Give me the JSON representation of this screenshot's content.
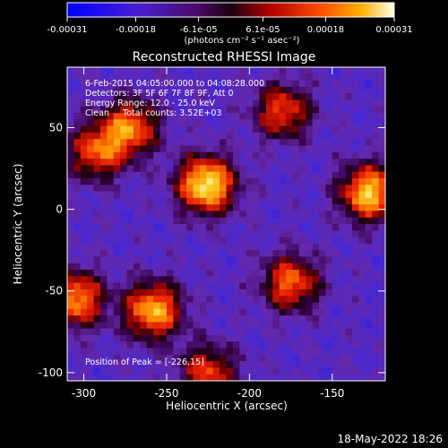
{
  "colorbar": {
    "tick_labels": [
      "-0.00031",
      "-0.00018",
      "-6.1e-05",
      "6.1e-05",
      "0.00018",
      "0.00031"
    ],
    "tick_values": [
      -0.00031,
      -0.00018,
      -6.1e-05,
      6.1e-05,
      0.00018,
      0.00031
    ],
    "range": [
      -0.00031,
      0.00031
    ],
    "units_label": "(photons cm⁻² s⁻¹ asec⁻²)"
  },
  "chart_data": {
    "type": "heatmap",
    "title": "Reconstructed RHESSI Image",
    "xlabel": "Heliocentric X (arcsec)",
    "ylabel": "Heliocentric Y (arcsec)",
    "xlim": [
      -310,
      -118
    ],
    "ylim": [
      -105,
      87
    ],
    "x_ticks": [
      -300,
      -250,
      -200,
      -150
    ],
    "y_ticks": [
      -100,
      -50,
      0,
      50
    ],
    "x_tick_labels": [
      "-300",
      "-250",
      "-200",
      "-150"
    ],
    "y_tick_labels": [
      "-100",
      "-50",
      "0",
      "50"
    ],
    "grid": false,
    "colormap_stops": [
      "#0000ff",
      "#6a2fb5",
      "#2a0035",
      "#8b0000",
      "#ff2a00",
      "#ff9900",
      "#ffffaa"
    ],
    "annotations": [
      "6-Feb-2015 04:05:00.000 to 04:08:28.000",
      "Detectors: 3F 5F 6F 7F 8F 9F, Att 0",
      "Energy Range: 12.0 - 25.0 keV",
      "Clean     Total counts: 3.52E+03"
    ],
    "peak_label": "Position of Peak = [-226,15]",
    "peak": [
      -226,
      15
    ],
    "sources": [
      {
        "x": -226,
        "y": 15,
        "peak": 0.00031
      },
      {
        "x": -272,
        "y": 50,
        "peak": 0.00018
      },
      {
        "x": -292,
        "y": 35,
        "peak": 0.00015
      },
      {
        "x": -128,
        "y": 10,
        "peak": 0.00026
      },
      {
        "x": -305,
        "y": -55,
        "peak": 0.00021
      },
      {
        "x": -258,
        "y": -62,
        "peak": 0.00024
      },
      {
        "x": -175,
        "y": -45,
        "peak": 0.00017
      },
      {
        "x": -180,
        "y": 60,
        "peak": 0.00014
      },
      {
        "x": -225,
        "y": -100,
        "peak": 0.00013
      }
    ]
  },
  "timestamp": "18-May-2022 18:26"
}
